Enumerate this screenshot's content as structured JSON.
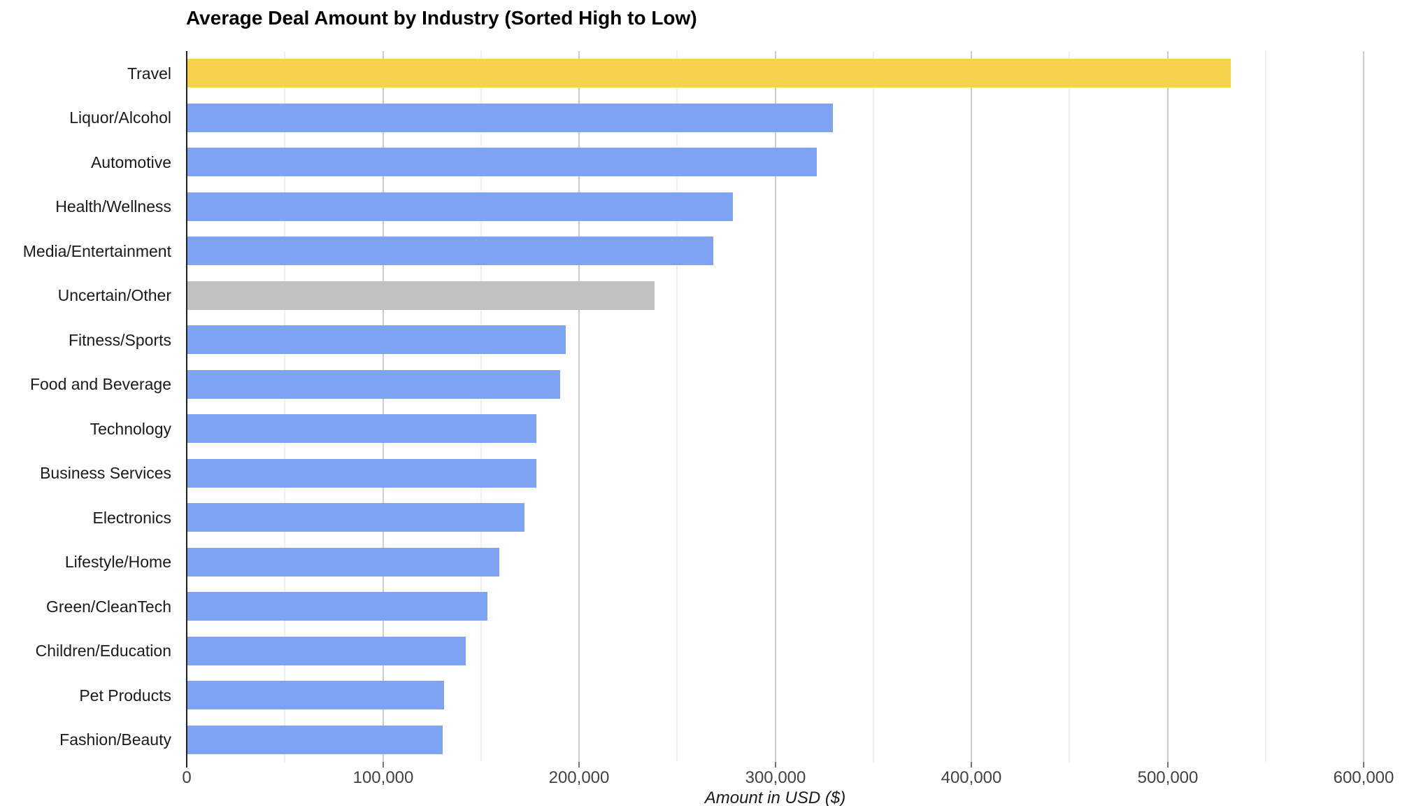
{
  "chart_data": {
    "type": "bar",
    "orientation": "horizontal",
    "title": "Average Deal Amount by Industry (Sorted High to Low)",
    "xlabel": "Amount in USD ($)",
    "ylabel": "",
    "sort": "descending by value",
    "categories": [
      "Travel",
      "Liquor/Alcohol",
      "Automotive",
      "Health/Wellness",
      "Media/Entertainment",
      "Uncertain/Other",
      "Fitness/Sports",
      "Food and Beverage",
      "Technology",
      "Business Services",
      "Electronics",
      "Lifestyle/Home",
      "Green/CleanTech",
      "Children/Education",
      "Pet Products",
      "Fashion/Beauty"
    ],
    "values": [
      532000,
      329000,
      321000,
      278000,
      268000,
      238000,
      193000,
      190000,
      178000,
      178000,
      172000,
      159000,
      153000,
      142000,
      131000,
      130000
    ],
    "bar_colors": [
      "#F5D44B",
      "#7EA3F2",
      "#7EA3F2",
      "#7EA3F2",
      "#7EA3F2",
      "#C1C1C1",
      "#7EA3F2",
      "#7EA3F2",
      "#7EA3F2",
      "#7EA3F2",
      "#7EA3F2",
      "#7EA3F2",
      "#7EA3F2",
      "#7EA3F2",
      "#7EA3F2",
      "#7EA3F2"
    ],
    "xlim": [
      0,
      600000
    ],
    "x_major_ticks": [
      0,
      100000,
      200000,
      300000,
      400000,
      500000,
      600000
    ],
    "x_tick_labels": [
      "0",
      "100,000",
      "200,000",
      "300,000",
      "400,000",
      "500,000",
      "600,000"
    ],
    "x_minor_tick_step": 50000,
    "grid": "vertical gridlines on; minor every 50,000; major every 100,000",
    "legend": "none"
  },
  "palette": {
    "highlight_bar": "#F5D44B",
    "default_bar": "#7EA3F2",
    "neutral_bar": "#C1C1C1",
    "major_gridline": "#cccccc",
    "minor_gridline": "#efefef",
    "axis_line": "#212121",
    "tick_label": "#424242",
    "background": "#ffffff"
  }
}
